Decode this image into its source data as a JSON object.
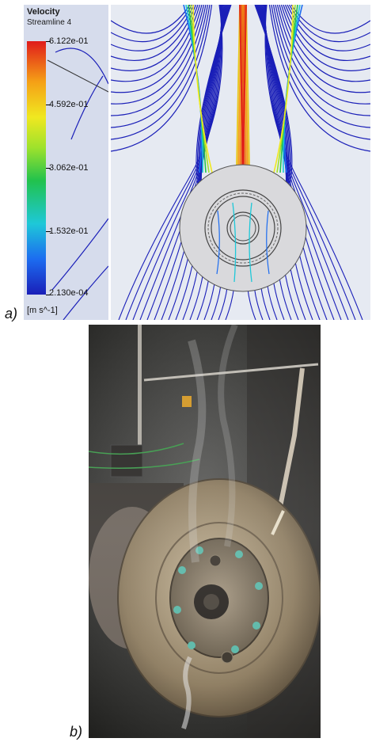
{
  "panels": {
    "a_label": "a)",
    "b_label": "b)"
  },
  "legend": {
    "title": "Velocity",
    "subtitle": "Streamline 4",
    "ticks": [
      "6.122e-01",
      "4.592e-01",
      "3.062e-01",
      "1.532e-01",
      "2.130e-04"
    ],
    "unit": "[m s^-1]"
  },
  "colors": {
    "background": "#d6dcec",
    "streamline_low": "#1a1fb8",
    "streamline_high": "#e01b1b",
    "disc": "#d9d9dc"
  }
}
